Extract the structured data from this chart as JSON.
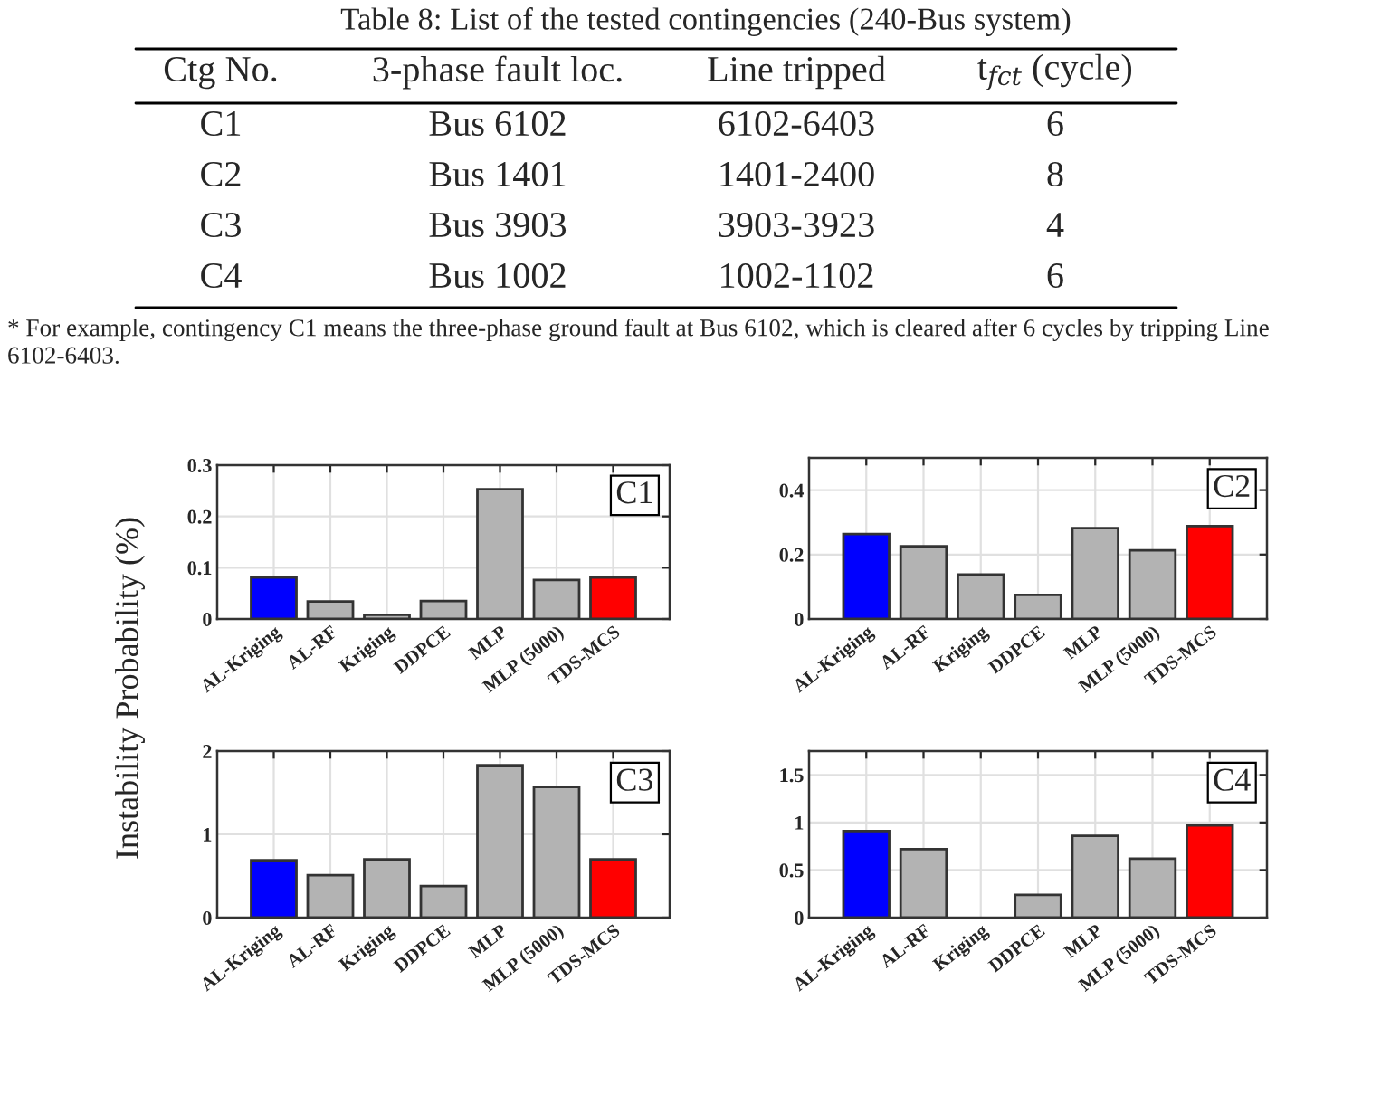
{
  "chart_data": [
    {
      "type": "other",
      "title": "Table 8: List of the tested contingencies (240-Bus system)",
      "annotations": [
        "Ctg No.",
        "3-phase fault loc.",
        "Line tripped",
        "t$_{fct}$ (cycle)",
        "C1",
        "Bus 6102",
        "6102-6403",
        "6",
        "C2",
        "Bus 1401",
        "1401-2400",
        "8",
        "C3",
        "Bus 3903",
        "3903-3923",
        "4",
        "C4",
        "Bus 1002",
        "1002-1102",
        "6",
        "* For example, contingency C1 means the three-phase ground fault at Bus 6102, which is cleared after 6 cycles by tripping Line 6102-6403."
      ]
    },
    {
      "type": "bar",
      "title": "C1",
      "ylabel": "Instability Probability (%)",
      "categories": [
        "AL-Kriging",
        "AL-RF",
        "Kriging",
        "DDPCE",
        "MLP",
        "MLP (5000)",
        "TDS-MCS"
      ],
      "values": [
        0.081,
        0.034,
        0.008,
        0.035,
        0.253,
        0.076,
        0.081
      ],
      "colors": [
        "#0000ff",
        "#b3b3b3",
        "#b3b3b3",
        "#b3b3b3",
        "#b3b3b3",
        "#b3b3b3",
        "#ff0000"
      ],
      "ylim": [
        0,
        0.3
      ],
      "yticks": [
        0,
        0.1,
        0.2,
        0.3
      ],
      "grid": true
    },
    {
      "type": "bar",
      "title": "C2",
      "categories": [
        "AL-Kriging",
        "AL-RF",
        "Kriging",
        "DDPCE",
        "MLP",
        "MLP (5000)",
        "TDS-MCS"
      ],
      "values": [
        0.264,
        0.226,
        0.138,
        0.075,
        0.282,
        0.213,
        0.288
      ],
      "colors": [
        "#0000ff",
        "#b3b3b3",
        "#b3b3b3",
        "#b3b3b3",
        "#b3b3b3",
        "#b3b3b3",
        "#ff0000"
      ],
      "ylim": [
        0,
        0.5
      ],
      "yticks": [
        0,
        0.2,
        0.4
      ],
      "grid": true
    },
    {
      "type": "bar",
      "title": "C3",
      "categories": [
        "AL-Kriging",
        "AL-RF",
        "Kriging",
        "DDPCE",
        "MLP",
        "MLP (5000)",
        "TDS-MCS"
      ],
      "values": [
        0.69,
        0.51,
        0.7,
        0.38,
        1.83,
        1.57,
        0.7
      ],
      "colors": [
        "#0000ff",
        "#b3b3b3",
        "#b3b3b3",
        "#b3b3b3",
        "#b3b3b3",
        "#b3b3b3",
        "#ff0000"
      ],
      "ylim": [
        0,
        2
      ],
      "yticks": [
        0,
        1,
        2
      ],
      "grid": true
    },
    {
      "type": "bar",
      "title": "C4",
      "categories": [
        "AL-Kriging",
        "AL-RF",
        "Kriging",
        "DDPCE",
        "MLP",
        "MLP (5000)",
        "TDS-MCS"
      ],
      "values": [
        0.91,
        0.72,
        0,
        0.24,
        0.86,
        0.62,
        0.97
      ],
      "colors": [
        "#0000ff",
        "#b3b3b3",
        "#b3b3b3",
        "#b3b3b3",
        "#b3b3b3",
        "#b3b3b3",
        "#ff0000"
      ],
      "ylim": [
        0,
        1.75
      ],
      "yticks": [
        0,
        0.5,
        1,
        1.5
      ],
      "grid": true
    }
  ]
}
